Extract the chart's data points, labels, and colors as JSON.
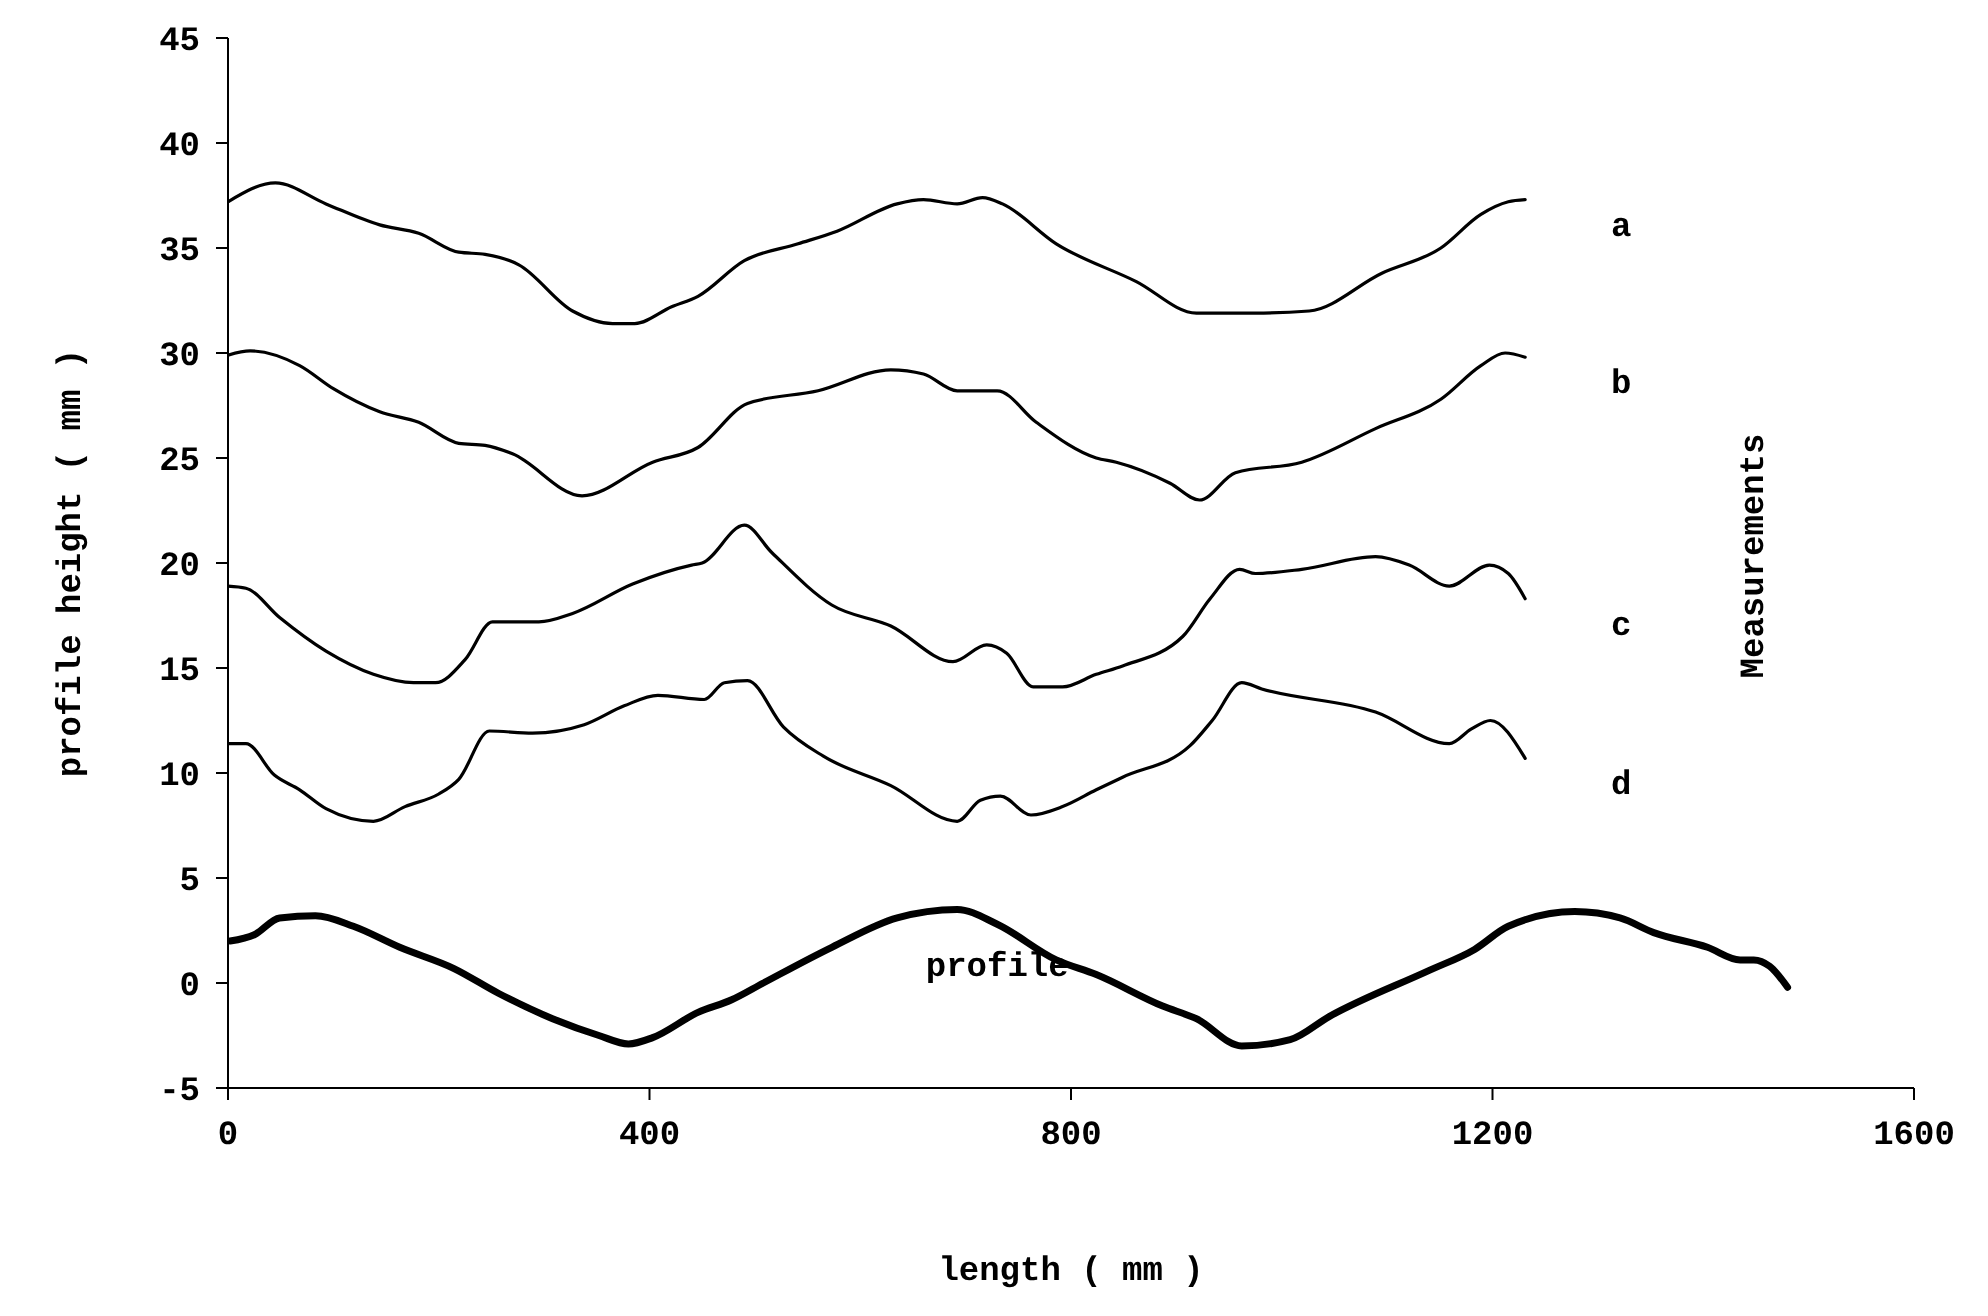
{
  "chart_data": {
    "type": "line",
    "xlabel": "length ( mm )",
    "ylabel": "profile height ( mm )",
    "xlim": [
      0,
      1600
    ],
    "xticks": [
      0,
      400,
      800,
      1200,
      1600
    ],
    "ylim": [
      -5,
      45
    ],
    "yticks": [
      -5,
      0,
      5,
      10,
      15,
      20,
      25,
      30,
      35,
      40,
      45
    ],
    "grid": false,
    "legend": false,
    "marker": "none",
    "line_style": "solid",
    "annotations": [
      "Measurements"
    ],
    "series": [
      {
        "name": "a",
        "color": "#000000",
        "x": [
          0,
          45,
          93,
          144,
          181,
          219,
          244,
          276,
          327,
          365,
          386,
          421,
          446,
          490,
          541,
          578,
          635,
          660,
          692,
          716,
          735,
          786,
          862,
          919,
          975,
          1026,
          1095,
          1151,
          1189,
          1215,
          1231
        ],
        "values": [
          37.2,
          38.1,
          37.1,
          36.1,
          35.7,
          34.8,
          34.7,
          34.2,
          32.0,
          31.4,
          31.4,
          32.2,
          32.7,
          34.4,
          35.2,
          35.8,
          37.1,
          37.3,
          37.1,
          37.4,
          37.1,
          35.2,
          33.4,
          31.9,
          31.9,
          32.0,
          33.8,
          35.0,
          36.6,
          37.2,
          37.3
        ]
      },
      {
        "name": "b",
        "color": "#000000",
        "x": [
          0,
          21,
          68,
          100,
          144,
          181,
          219,
          244,
          270,
          336,
          403,
          446,
          493,
          560,
          629,
          660,
          692,
          730,
          767,
          824,
          843,
          894,
          922,
          956,
          1019,
          1089,
          1151,
          1189,
          1212,
          1231
        ],
        "values": [
          29.9,
          30.1,
          29.4,
          28.3,
          27.2,
          26.7,
          25.7,
          25.6,
          25.2,
          23.2,
          24.8,
          25.5,
          27.6,
          28.2,
          29.2,
          29.0,
          28.2,
          28.2,
          26.7,
          25.0,
          24.8,
          23.8,
          23.0,
          24.3,
          24.8,
          26.4,
          27.8,
          29.4,
          30.0,
          29.8
        ]
      },
      {
        "name": "c",
        "color": "#000000",
        "x": [
          0,
          17,
          49,
          93,
          138,
          176,
          197,
          225,
          251,
          295,
          327,
          384,
          440,
          450,
          490,
          516,
          573,
          629,
          688,
          720,
          739,
          764,
          792,
          824,
          849,
          906,
          932,
          960,
          975,
          1019,
          1089,
          1121,
          1159,
          1197,
          1215,
          1231
        ],
        "values": [
          18.9,
          18.8,
          17.4,
          15.8,
          14.7,
          14.3,
          14.3,
          15.4,
          17.2,
          17.2,
          17.6,
          19.0,
          19.9,
          20.0,
          21.8,
          20.5,
          18.0,
          17.0,
          15.3,
          16.1,
          15.7,
          14.1,
          14.1,
          14.7,
          15.1,
          16.5,
          18.3,
          19.7,
          19.5,
          19.7,
          20.3,
          19.9,
          18.9,
          19.9,
          19.5,
          18.3
        ]
      },
      {
        "name": "d",
        "color": "#000000",
        "x": [
          0,
          17,
          44,
          68,
          93,
          138,
          168,
          200,
          219,
          248,
          289,
          338,
          376,
          408,
          452,
          471,
          493,
          527,
          565,
          629,
          692,
          714,
          733,
          762,
          792,
          824,
          849,
          913,
          934,
          962,
          981,
          1089,
          1159,
          1180,
          1198,
          1231
        ],
        "values": [
          11.4,
          11.4,
          9.9,
          9.2,
          8.3,
          7.7,
          8.4,
          9.0,
          9.7,
          12.0,
          11.9,
          12.3,
          13.2,
          13.7,
          13.5,
          14.3,
          14.4,
          12.2,
          10.8,
          9.4,
          7.7,
          8.7,
          8.9,
          8.0,
          8.4,
          9.2,
          9.8,
          11.3,
          12.5,
          14.3,
          14.0,
          12.9,
          11.4,
          12.1,
          12.5,
          10.7
        ]
      },
      {
        "name": "profile",
        "color": "#000000",
        "x": [
          2,
          25,
          49,
          83,
          119,
          163,
          214,
          257,
          308,
          352,
          380,
          403,
          446,
          478,
          508,
          573,
          635,
          692,
          730,
          786,
          824,
          887,
          919,
          962,
          1008,
          1045,
          1140,
          1183,
          1215,
          1278,
          1321,
          1353,
          1404,
          1435,
          1448,
          1463,
          1480
        ],
        "values": [
          2.0,
          2.3,
          3.1,
          3.2,
          2.7,
          1.7,
          0.7,
          -0.5,
          -1.7,
          -2.5,
          -2.9,
          -2.6,
          -1.4,
          -0.8,
          0.0,
          1.7,
          3.1,
          3.5,
          2.8,
          1.1,
          0.4,
          -1.1,
          -1.7,
          -3.0,
          -2.7,
          -1.6,
          0.6,
          1.6,
          2.7,
          3.4,
          3.1,
          2.4,
          1.7,
          1.1,
          1.1,
          0.8,
          -0.2
        ]
      }
    ]
  }
}
